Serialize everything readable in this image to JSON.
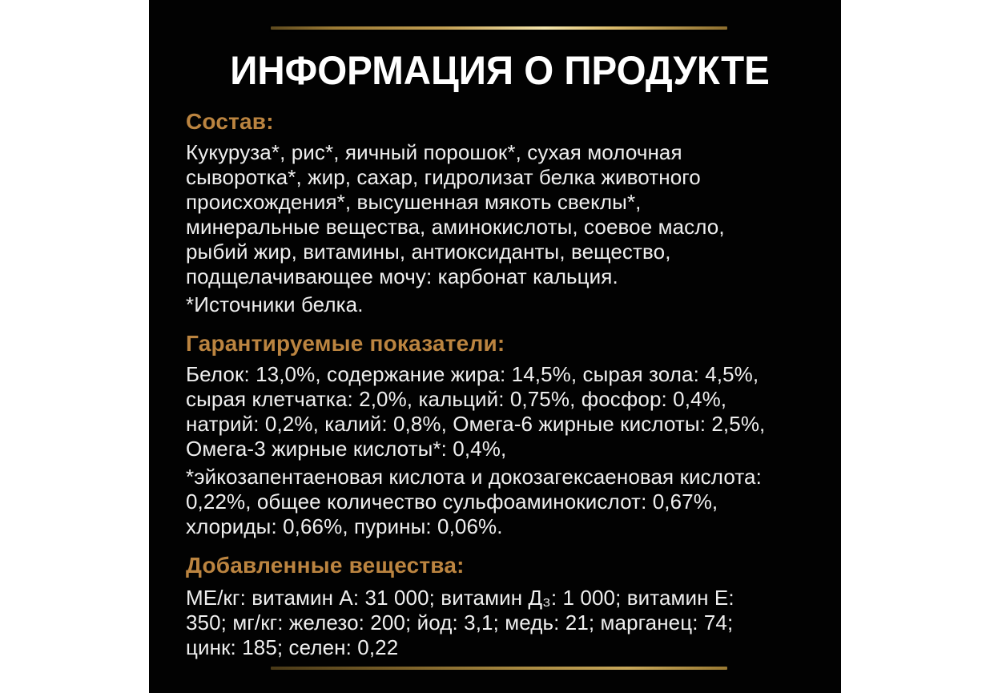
{
  "title": "ИНФОРМАЦИЯ О ПРОДУКТЕ",
  "colors": {
    "panel_background": "#020202",
    "page_background": "#ffffff",
    "heading_gold": "#bb8440",
    "body_text": "#efefef",
    "divider_gold_bright": "#f2e3ab",
    "divider_gold_dark": "#5e4a1f"
  },
  "sections": [
    {
      "heading": "Состав:",
      "body": "Кукуруза*, рис*, яичный порошок*, сухая молочная\nсыворотка*, жир, сахар, гидролизат белка животного\nпроисхождения*, высушенная мякоть свеклы*,\nминеральные вещества, аминокислоты, соевое масло,\nрыбий жир, витамины, антиоксиданты, вещество,\nподщелачивающее мочу: карбонат кальция.",
      "note": "*Источники белка."
    },
    {
      "heading": "Гарантируемые показатели:",
      "body": "Белок: 13,0%, содержание жира: 14,5%, сырая зола: 4,5%,\nсырая клетчатка: 2,0%, кальций: 0,75%, фосфор: 0,4%,\nнатрий: 0,2%, калий: 0,8%, Омега-6 жирные кислоты: 2,5%,\nОмега-3 жирные кислоты*: 0,4%,",
      "note": "*эйкозапентаеновая кислота и докозагексаеновая кислота:\n0,22%, общее количество сульфоаминокислот: 0,67%,\nхлориды: 0,66%, пурины: 0,06%."
    },
    {
      "heading": "Добавленные вещества:",
      "body": "МЕ/кг: витамин А: 31 000; витамин Д₃: 1 000; витамин Е:\n350; мг/кг: железо: 200; йод: 3,1; медь: 21; марганец: 74;\nцинк: 185; селен: 0,22",
      "note": ""
    }
  ]
}
